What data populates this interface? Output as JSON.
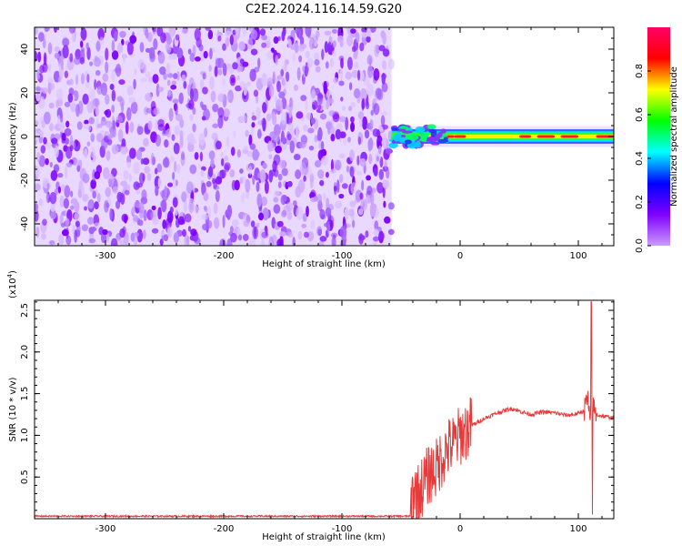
{
  "figure": {
    "title": "C2E2.2024.116.14.59.G20"
  },
  "chart_data": [
    {
      "type": "heatmap",
      "xlabel": "Height of straight line (km)",
      "ylabel": "Frequency (Hz)",
      "xlim": [
        -360,
        130
      ],
      "ylim": [
        -50,
        50
      ],
      "x_ticks": [
        "-300",
        "-200",
        "-100",
        "0",
        "100"
      ],
      "y_ticks": [
        "-40",
        "-20",
        "0",
        "20",
        "40"
      ],
      "colorbar": {
        "label": "Normalized spectral amplitude",
        "range": [
          0,
          1
        ],
        "ticks": [
          "0.0",
          "0.2",
          "0.4",
          "0.6",
          "0.8"
        ],
        "colormap": [
          "#cc99ff",
          "#7f00ff",
          "#0000ff",
          "#00ffff",
          "#00ff00",
          "#ffff00",
          "#ff0000",
          "#ff0066"
        ]
      },
      "regions": [
        {
          "x_range": [
            -360,
            -58
          ],
          "frequency_range": [
            -50,
            50
          ],
          "amplitude_range": [
            0.0,
            0.15
          ],
          "description_colors": [
            "#cc99ff",
            "#7f00ff"
          ]
        },
        {
          "x_range": [
            -58,
            130
          ],
          "frequency_center": 0,
          "frequency_halfwidth": 3,
          "amplitude_range": [
            0.4,
            0.95
          ]
        }
      ]
    },
    {
      "type": "line",
      "xlabel": "Height of straight line (km)",
      "ylabel": "SNR (10 * v/v)",
      "y_multiplier": "(x10",
      "y_multiplier_exp": "4",
      "y_multiplier_close": ")",
      "xlim": [
        -360,
        130
      ],
      "ylim": [
        0,
        2.62
      ],
      "x_ticks": [
        "-300",
        "-200",
        "-100",
        "0",
        "100"
      ],
      "y_ticks": [
        "0.5",
        "1.0",
        "1.5",
        "2.0",
        "2.5"
      ],
      "series": [
        {
          "color": "#e83a3a",
          "x": [
            -360,
            -300,
            -200,
            -100,
            -42,
            -40,
            -35,
            -30,
            -25,
            -20,
            -15,
            -10,
            -5,
            0,
            10,
            20,
            30,
            40,
            45,
            50,
            60,
            70,
            80,
            90,
            100,
            105,
            108,
            110,
            112,
            115,
            120,
            125,
            130
          ],
          "y": [
            0.03,
            0.03,
            0.03,
            0.03,
            0.03,
            0.35,
            0.3,
            0.45,
            0.55,
            0.6,
            0.75,
            0.85,
            0.9,
            1.0,
            1.12,
            1.2,
            1.26,
            1.31,
            1.32,
            1.29,
            1.25,
            1.28,
            1.27,
            1.24,
            1.26,
            1.3,
            1.45,
            1.1,
            1.35,
            1.25,
            1.23,
            1.22,
            1.21
          ]
        }
      ]
    }
  ]
}
